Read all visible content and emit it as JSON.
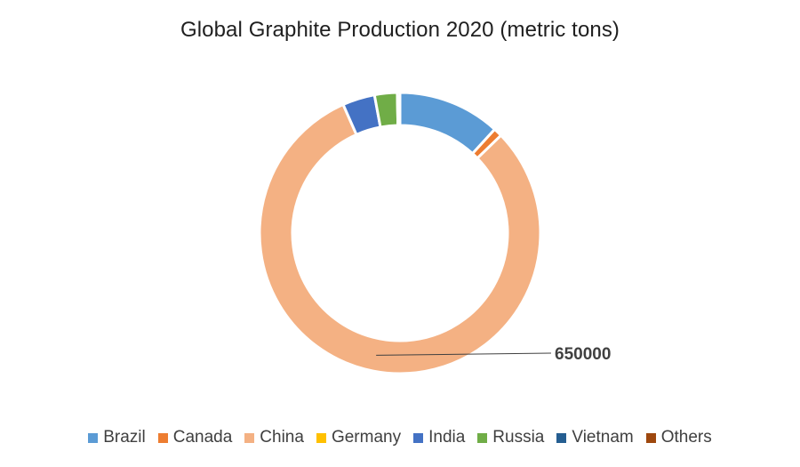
{
  "chart_data": {
    "type": "pie",
    "subtype": "doughnut",
    "title": "Global Graphite Production 2020 (metric tons)",
    "categories": [
      "Brazil",
      "Canada",
      "China",
      "Germany",
      "India",
      "Russia",
      "Vietnam",
      "Others"
    ],
    "values": [
      95000,
      8000,
      650000,
      0,
      30000,
      21000,
      2500,
      0
    ],
    "colors": [
      "#5B9BD5",
      "#ED7D31",
      "#F4B183",
      "#FFC000",
      "#4472C4",
      "#70AD47",
      "#255E91",
      "#9E480E"
    ],
    "data_labels": [
      {
        "category": "China",
        "text": "650000"
      }
    ],
    "legend_position": "bottom"
  }
}
